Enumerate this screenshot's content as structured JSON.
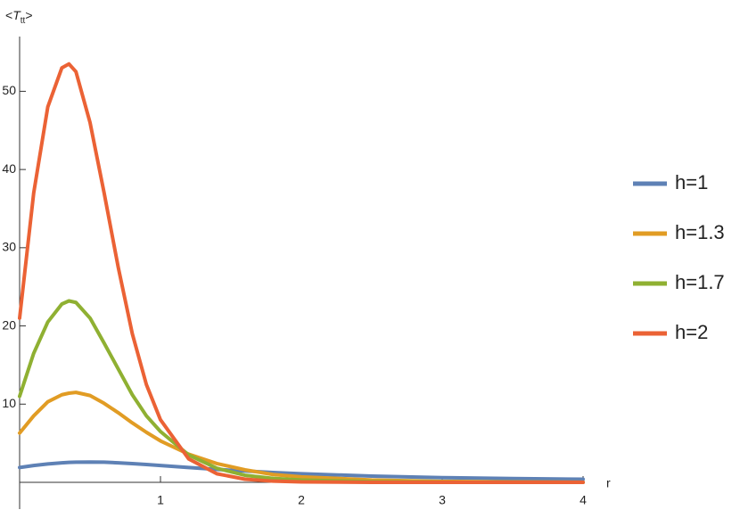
{
  "chart_data": {
    "type": "line",
    "ylabel_parts": [
      "<",
      "T",
      "tt",
      ">"
    ],
    "xlabel": "r",
    "x": [
      0,
      0.1,
      0.2,
      0.3,
      0.35,
      0.4,
      0.5,
      0.6,
      0.7,
      0.8,
      0.9,
      1.0,
      1.2,
      1.4,
      1.6,
      1.8,
      2.0,
      2.5,
      3.0,
      3.5,
      4.0
    ],
    "series": [
      {
        "name": "h=1",
        "color": "#5e81b5",
        "values": [
          1.9,
          2.15,
          2.35,
          2.5,
          2.55,
          2.58,
          2.6,
          2.58,
          2.5,
          2.4,
          2.28,
          2.15,
          1.9,
          1.65,
          1.45,
          1.25,
          1.1,
          0.8,
          0.6,
          0.48,
          0.4
        ]
      },
      {
        "name": "h=1.3",
        "color": "#e19c24",
        "values": [
          6.3,
          8.5,
          10.3,
          11.2,
          11.4,
          11.5,
          11.1,
          10.1,
          8.9,
          7.6,
          6.4,
          5.3,
          3.6,
          2.4,
          1.6,
          1.0,
          0.7,
          0.3,
          0.12,
          0.05,
          0.02
        ]
      },
      {
        "name": "h=1.7",
        "color": "#8fb032",
        "values": [
          11,
          16.5,
          20.5,
          22.8,
          23.2,
          23,
          21,
          17.8,
          14.5,
          11.2,
          8.5,
          6.5,
          3.5,
          1.8,
          0.9,
          0.5,
          0.3,
          0.08,
          0.02,
          0.01,
          0
        ]
      },
      {
        "name": "h=2",
        "color": "#eb6235",
        "values": [
          21,
          37,
          48,
          53,
          53.5,
          52.5,
          46,
          37,
          27.5,
          19,
          12.5,
          8,
          3,
          1.1,
          0.4,
          0.15,
          0.05,
          0,
          0,
          0,
          0
        ]
      }
    ],
    "xlim": [
      0,
      4
    ],
    "ylim": [
      0,
      57
    ],
    "xticks": [
      1,
      2,
      3,
      4
    ],
    "yticks": [
      10,
      20,
      30,
      40,
      50
    ],
    "legend": "right"
  }
}
